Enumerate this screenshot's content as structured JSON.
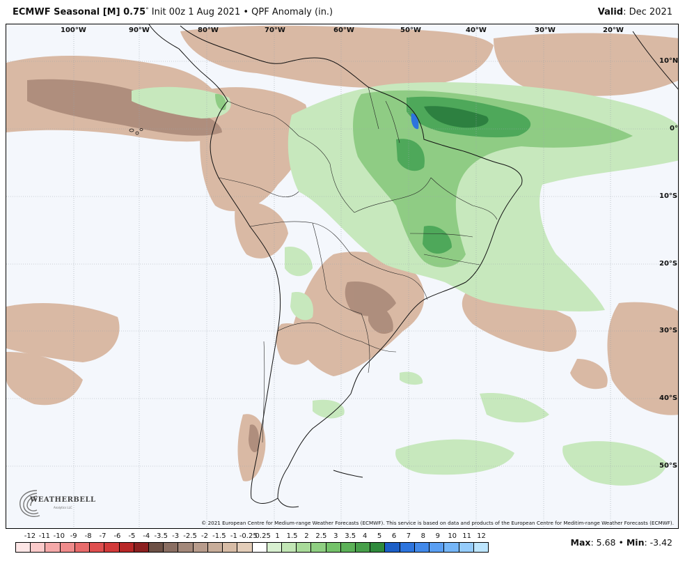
{
  "title": {
    "model": "ECMWF Seasonal [M] 0.75",
    "degree": "°",
    "init": "Init 00z 1 Aug 2021",
    "bullet": "•",
    "field": "QPF Anomaly (in.)"
  },
  "valid": {
    "label": "Valid",
    "value": ": Dec 2021"
  },
  "longitude_labels": [
    "100°W",
    "90°W",
    "80°W",
    "70°W",
    "60°W",
    "50°W",
    "40°W",
    "30°W",
    "20°W"
  ],
  "latitude_labels": [
    "10°N",
    "0°",
    "10°S",
    "20°S",
    "30°S",
    "40°S",
    "50°S"
  ],
  "copyright": "© 2021 European Centre for Medium-range Weather Forecasts (ECMWF). This service is based on data and products of the European Centre for Meditim-range Weather Forecasts (ECMWF).",
  "logo": {
    "text": "WEATHERBELL",
    "subtext": "Analytics LLC"
  },
  "legend": {
    "labels": [
      "-12",
      "-11",
      "-10",
      "-9",
      "-8",
      "-7",
      "-6",
      "-5",
      "-4",
      "-3.5",
      "-3",
      "-2.5",
      "-2",
      "-1.5",
      "-1",
      "-0.25",
      "0.25",
      "1",
      "1.5",
      "2",
      "2.5",
      "3",
      "3.5",
      "4",
      "5",
      "6",
      "7",
      "8",
      "9",
      "10",
      "11",
      "12"
    ],
    "colors": [
      "#fde6e6",
      "#fbcaca",
      "#f5a9a9",
      "#ef8b8b",
      "#e86b6b",
      "#df4f4f",
      "#d23a3a",
      "#b82727",
      "#8c2020",
      "#6d5146",
      "#8a6e62",
      "#a3887a",
      "#b89c8c",
      "#c8ad9a",
      "#d7bca6",
      "#e3cdb9",
      "#ffffff",
      "#d8f0d0",
      "#c2e6b5",
      "#a9db9a",
      "#8fcf82",
      "#74c26a",
      "#5cb158",
      "#479f4a",
      "#2f8a3c",
      "#1c5fc7",
      "#2d74dd",
      "#4289ea",
      "#5a9ff3",
      "#75b6f8",
      "#95ccfb",
      "#bde5fd"
    ]
  },
  "max_min": {
    "max_label": "Max",
    "max_value": ": 5.68",
    "sep": "•",
    "min_label": "Min",
    "min_value": ": -3.42"
  },
  "colors": {
    "dry": "#d9b9a4",
    "dry_dark": "#a08070",
    "wet_light": "#c7e8bd",
    "wet_mid": "#8fcc84",
    "wet_dark": "#4ea85a",
    "wet_max": "#2d8040",
    "ocean": "#f4f7fc"
  }
}
